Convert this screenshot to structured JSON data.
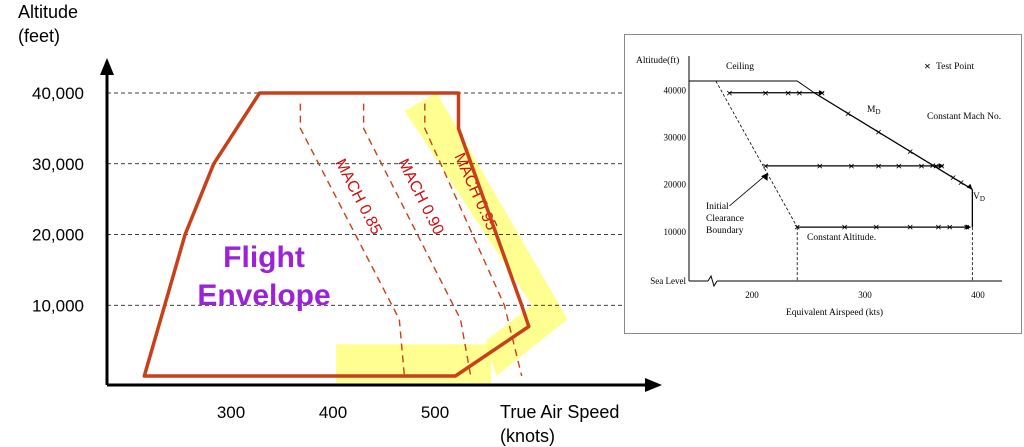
{
  "chart_data": [
    {
      "type": "line",
      "ylabel": [
        "Altitude",
        "(feet)"
      ],
      "xlabel": [
        "True Air Speed",
        "(knots)"
      ],
      "y_ticks": [
        "10,000",
        "20,000",
        "30,000",
        "40,000"
      ],
      "x_ticks": [
        "300",
        "400",
        "500"
      ],
      "envelope_label": [
        "Flight",
        "Envelope"
      ],
      "envelope": [
        [
          215,
          0
        ],
        [
          235,
          10000
        ],
        [
          255,
          20000
        ],
        [
          283,
          30000
        ],
        [
          328,
          40000
        ],
        [
          523,
          40000
        ],
        [
          523,
          35000
        ],
        [
          585,
          10000
        ],
        [
          592,
          7000
        ],
        [
          520,
          0
        ]
      ],
      "mach_lines": [
        {
          "label": "MACH 0.85",
          "points": [
            [
              368,
              38500
            ],
            [
              368,
              35000
            ],
            [
              465,
              8000
            ],
            [
              470,
              0
            ]
          ]
        },
        {
          "label": "MACH 0.90",
          "points": [
            [
              430,
              38500
            ],
            [
              430,
              35000
            ],
            [
              525,
              8000
            ],
            [
              535,
              0
            ]
          ]
        },
        {
          "label": "MACH 0.95",
          "points": [
            [
              490,
              38500
            ],
            [
              490,
              35000
            ],
            [
              568,
              10000
            ],
            [
              585,
              0
            ]
          ]
        }
      ],
      "highlights": [
        {
          "points": [
            [
              470,
              37500
            ],
            [
              502,
              40000
            ],
            [
              630,
              8000
            ],
            [
              560,
              0
            ],
            [
              550,
              5000
            ],
            [
              595,
              10000
            ]
          ]
        },
        {
          "points": [
            [
              403,
              4500
            ],
            [
              555,
              4500
            ],
            [
              555,
              -1000
            ],
            [
              403,
              -1000
            ]
          ]
        }
      ],
      "colors": {
        "envelope": "#c8401a",
        "mach": "#c8401a",
        "mach_text": "#cc1111",
        "highlight": "#ffff66",
        "label": "#9b22d6"
      }
    },
    {
      "type": "line",
      "xlabel": "Equivalent Airspeed (kts)",
      "ylabel": "Altitude(ft)",
      "x_ticks": [
        "200",
        "300",
        "400"
      ],
      "y_ticks": [
        "40000",
        "30000",
        "20000",
        "10000",
        "Sea Level"
      ],
      "legend": "Test Point",
      "annotations": {
        "ceiling": "Ceiling",
        "md": "M",
        "md_sub": "D",
        "vd": "V",
        "vd_sub": "D",
        "constant_mach": "Constant Mach No.",
        "constant_altitude": "Constant Altitude.",
        "initial_clearance": [
          "Initial",
          "Clearance",
          "Boundary"
        ]
      },
      "test_points": [
        {
          "altitude": 39500,
          "airspeed": [
            180,
            212,
            232,
            242,
            262
          ]
        },
        {
          "altitude": 24000,
          "airspeed": [
            212,
            260,
            288,
            312,
            330,
            350,
            363,
            368
          ]
        },
        {
          "altitude": 11000,
          "airspeed": [
            240,
            282,
            310,
            340,
            365,
            375,
            390
          ]
        },
        {
          "along_md": true,
          "airspeed": [
            285,
            312,
            340,
            360,
            378,
            385
          ]
        }
      ],
      "ceiling_altitude": 42000,
      "md_line": [
        [
          255,
          39500
        ],
        [
          395,
          19000
        ]
      ],
      "vd_line": [
        [
          395,
          19000
        ],
        [
          395,
          11000
        ]
      ]
    }
  ]
}
